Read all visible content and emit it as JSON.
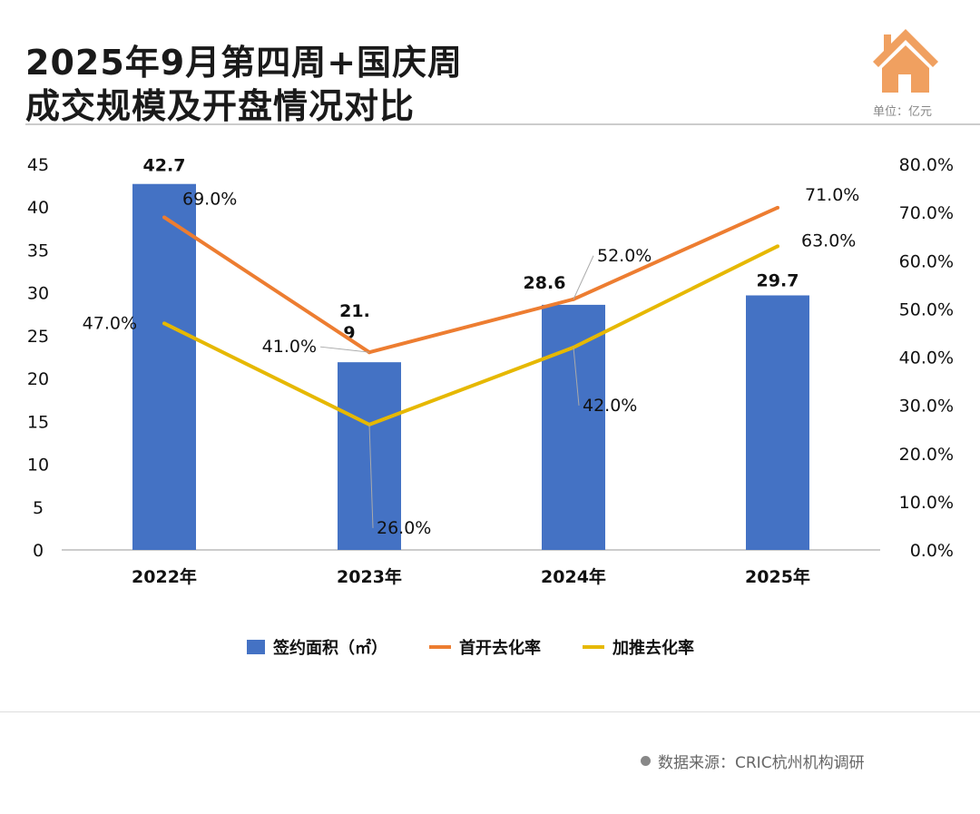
{
  "header": {
    "title_line1": "2025年9月第四周+国庆周",
    "title_line2": "成交规模及开盘情况对比",
    "unit": "单位：亿元",
    "icon": "house-icon",
    "icon_color": "#f0a060"
  },
  "source": "数据来源：CRIC杭州机构调研",
  "chart_data": {
    "type": "bar",
    "categories": [
      "2022年",
      "2023年",
      "2024年",
      "2025年"
    ],
    "series": [
      {
        "name": "签约面积（㎡）",
        "type": "bar",
        "axis": "left",
        "color": "#4472c4",
        "values": [
          42.7,
          21.9,
          28.6,
          29.7
        ],
        "labels": [
          "42.7",
          "21.\n9",
          "28.6",
          "29.7"
        ]
      },
      {
        "name": "首开去化率",
        "type": "line",
        "axis": "right",
        "color": "#ed7d31",
        "values": [
          69.0,
          41.0,
          52.0,
          71.0
        ],
        "labels": [
          "69.0%",
          "41.0%",
          "52.0%",
          "71.0%"
        ]
      },
      {
        "name": "加推去化率",
        "type": "line",
        "axis": "right",
        "color": "#e6b800",
        "values": [
          47.0,
          26.0,
          42.0,
          63.0
        ],
        "labels": [
          "47.0%",
          "26.0%",
          "42.0%",
          "63.0%"
        ]
      }
    ],
    "y_left": {
      "min": 0,
      "max": 45,
      "ticks": [
        "0",
        "5",
        "10",
        "15",
        "20",
        "25",
        "30",
        "35",
        "40",
        "45"
      ]
    },
    "y_right": {
      "min": 0,
      "max": 80,
      "ticks": [
        "0.0%",
        "10.0%",
        "20.0%",
        "30.0%",
        "40.0%",
        "50.0%",
        "60.0%",
        "70.0%",
        "80.0%"
      ]
    },
    "grid": false,
    "legend": "bottom"
  }
}
